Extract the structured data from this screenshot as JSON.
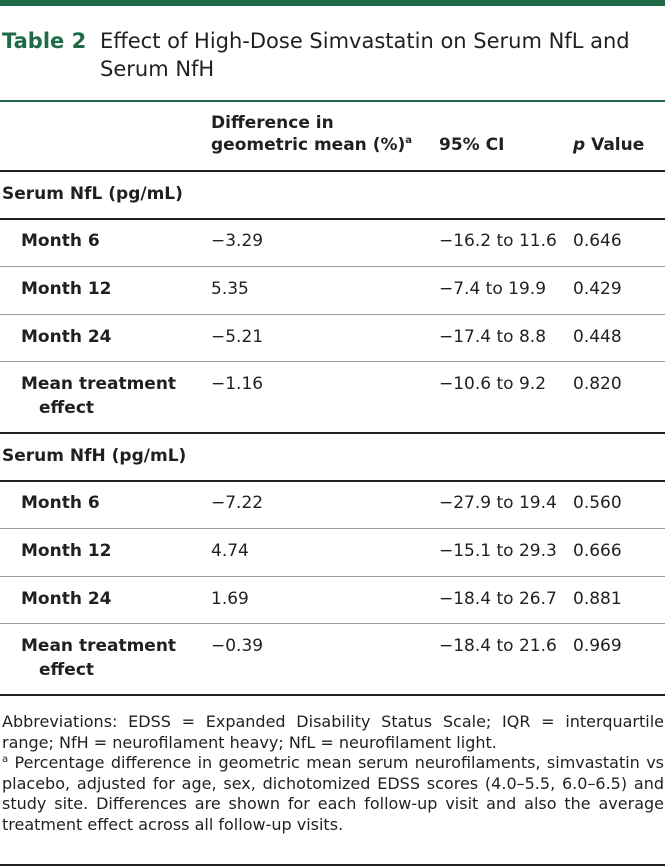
{
  "title": {
    "label": "Table 2",
    "text": "Effect of High-Dose Simvastatin on Serum NfL and Serum NfH"
  },
  "headers": {
    "diff_line1": "Difference in",
    "diff_line2": "geometric mean (%)",
    "diff_sup": "a",
    "ci": "95% CI",
    "p_italic": "p",
    "p_rest": " Value"
  },
  "sections": [
    {
      "label": "Serum NfL (pg/mL)",
      "rows": [
        {
          "label": "Month 6",
          "diff": "−3.29",
          "ci": "−16.2 to 11.6",
          "p": "0.646"
        },
        {
          "label": "Month 12",
          "diff": "5.35",
          "ci": "−7.4 to 19.9",
          "p": "0.429"
        },
        {
          "label": "Month 24",
          "diff": "−5.21",
          "ci": "−17.4 to 8.8",
          "p": "0.448"
        },
        {
          "label_line1": "Mean treatment",
          "label_line2": "effect",
          "diff": "−1.16",
          "ci": "−10.6 to 9.2",
          "p": "0.820"
        }
      ]
    },
    {
      "label": "Serum NfH (pg/mL)",
      "rows": [
        {
          "label": "Month 6",
          "diff": "−7.22",
          "ci": "−27.9 to 19.4",
          "p": "0.560"
        },
        {
          "label": "Month 12",
          "diff": "4.74",
          "ci": "−15.1 to 29.3",
          "p": "0.666"
        },
        {
          "label": "Month 24",
          "diff": "1.69",
          "ci": "−18.4 to 26.7",
          "p": "0.881"
        },
        {
          "label_line1": "Mean treatment",
          "label_line2": "effect",
          "diff": "−0.39",
          "ci": "−18.4 to 21.6",
          "p": "0.969"
        }
      ]
    }
  ],
  "footer": {
    "abbreviations": "Abbreviations: EDSS = Expanded Disability Status Scale; IQR = interquartile range; NfH = neurofilament heavy; NfL = neurofilament light.",
    "note_sup": "a",
    "note": " Percentage difference in geometric mean serum neurofilaments, simvastatin vs placebo, adjusted for age, sex, dichotomized EDSS scores (4.0–5.5, 6.0–6.5) and study site. Differences are shown for each follow-up visit and also the average treatment effect across all follow-up visits."
  }
}
